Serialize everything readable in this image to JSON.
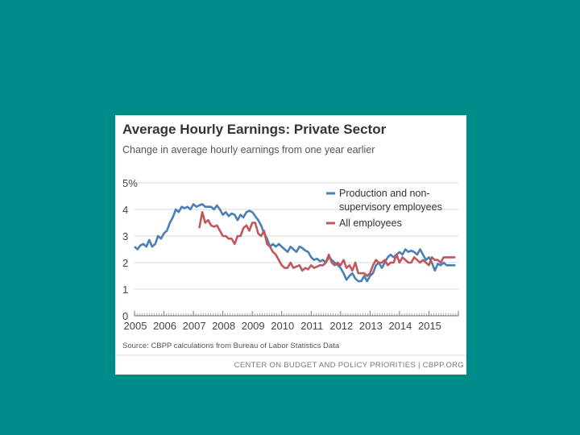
{
  "background_color": "#008b8b",
  "chart_data": {
    "type": "line",
    "title": "Average Hourly Earnings: Private Sector",
    "subtitle": "Change in average hourly earnings from one year earlier",
    "ylim": [
      0,
      5
    ],
    "y_ticks": [
      {
        "value": 0,
        "label": "0"
      },
      {
        "value": 1,
        "label": "1"
      },
      {
        "value": 2,
        "label": "2"
      },
      {
        "value": 3,
        "label": "3"
      },
      {
        "value": 4,
        "label": "4"
      },
      {
        "value": 5,
        "label": "5%"
      }
    ],
    "xlim": [
      2005,
      2016
    ],
    "x_ticks": [
      {
        "value": 2005,
        "label": "2005"
      },
      {
        "value": 2006,
        "label": "2006"
      },
      {
        "value": 2007,
        "label": "2007"
      },
      {
        "value": 2008,
        "label": "2008"
      },
      {
        "value": 2009,
        "label": "2009"
      },
      {
        "value": 2010,
        "label": "2010"
      },
      {
        "value": 2011,
        "label": "2011"
      },
      {
        "value": 2012,
        "label": "2012"
      },
      {
        "value": 2013,
        "label": "2013"
      },
      {
        "value": 2014,
        "label": "2014"
      },
      {
        "value": 2015,
        "label": "2015"
      }
    ],
    "legend_position": "top-right",
    "series": [
      {
        "name": "Production and non-supervisory employees",
        "legend_lines": [
          "Production and non-",
          "supervisory employees"
        ],
        "color": "#4a7fb5",
        "points": [
          [
            2005.0,
            2.6
          ],
          [
            2005.1,
            2.5
          ],
          [
            2005.2,
            2.65
          ],
          [
            2005.3,
            2.7
          ],
          [
            2005.4,
            2.6
          ],
          [
            2005.5,
            2.85
          ],
          [
            2005.6,
            2.6
          ],
          [
            2005.7,
            2.7
          ],
          [
            2005.8,
            3.0
          ],
          [
            2005.9,
            2.9
          ],
          [
            2006.0,
            3.1
          ],
          [
            2006.1,
            3.2
          ],
          [
            2006.2,
            3.5
          ],
          [
            2006.3,
            3.7
          ],
          [
            2006.4,
            4.0
          ],
          [
            2006.5,
            3.9
          ],
          [
            2006.6,
            4.1
          ],
          [
            2006.7,
            4.05
          ],
          [
            2006.8,
            4.1
          ],
          [
            2006.9,
            4.0
          ],
          [
            2007.0,
            4.2
          ],
          [
            2007.1,
            4.1
          ],
          [
            2007.2,
            4.15
          ],
          [
            2007.3,
            4.2
          ],
          [
            2007.4,
            4.1
          ],
          [
            2007.5,
            4.1
          ],
          [
            2007.6,
            4.1
          ],
          [
            2007.7,
            4.0
          ],
          [
            2007.8,
            4.15
          ],
          [
            2007.9,
            4.0
          ],
          [
            2008.0,
            3.8
          ],
          [
            2008.1,
            3.9
          ],
          [
            2008.2,
            3.75
          ],
          [
            2008.3,
            3.85
          ],
          [
            2008.4,
            3.8
          ],
          [
            2008.5,
            3.6
          ],
          [
            2008.6,
            3.8
          ],
          [
            2008.7,
            3.7
          ],
          [
            2008.8,
            3.9
          ],
          [
            2008.9,
            3.95
          ],
          [
            2009.0,
            3.9
          ],
          [
            2009.1,
            3.75
          ],
          [
            2009.2,
            3.6
          ],
          [
            2009.3,
            3.4
          ],
          [
            2009.4,
            3.1
          ],
          [
            2009.5,
            2.9
          ],
          [
            2009.6,
            2.6
          ],
          [
            2009.7,
            2.7
          ],
          [
            2009.8,
            2.6
          ],
          [
            2009.9,
            2.7
          ],
          [
            2010.0,
            2.6
          ],
          [
            2010.1,
            2.5
          ],
          [
            2010.2,
            2.4
          ],
          [
            2010.3,
            2.6
          ],
          [
            2010.4,
            2.5
          ],
          [
            2010.5,
            2.4
          ],
          [
            2010.6,
            2.6
          ],
          [
            2010.7,
            2.55
          ],
          [
            2010.8,
            2.45
          ],
          [
            2010.9,
            2.4
          ],
          [
            2011.0,
            2.2
          ],
          [
            2011.1,
            2.1
          ],
          [
            2011.2,
            2.15
          ],
          [
            2011.3,
            2.05
          ],
          [
            2011.4,
            2.1
          ],
          [
            2011.5,
            2.0
          ],
          [
            2011.6,
            2.2
          ],
          [
            2011.7,
            2.1
          ],
          [
            2011.8,
            2.0
          ],
          [
            2011.9,
            1.9
          ],
          [
            2012.0,
            1.8
          ],
          [
            2012.1,
            1.6
          ],
          [
            2012.2,
            1.35
          ],
          [
            2012.3,
            1.5
          ],
          [
            2012.4,
            1.6
          ],
          [
            2012.5,
            1.4
          ],
          [
            2012.6,
            1.3
          ],
          [
            2012.7,
            1.3
          ],
          [
            2012.8,
            1.5
          ],
          [
            2012.9,
            1.3
          ],
          [
            2013.0,
            1.5
          ],
          [
            2013.1,
            1.6
          ],
          [
            2013.2,
            1.9
          ],
          [
            2013.3,
            2.0
          ],
          [
            2013.4,
            1.8
          ],
          [
            2013.5,
            2.0
          ],
          [
            2013.6,
            2.2
          ],
          [
            2013.7,
            2.3
          ],
          [
            2013.8,
            2.2
          ],
          [
            2013.9,
            2.3
          ],
          [
            2014.0,
            2.4
          ],
          [
            2014.1,
            2.3
          ],
          [
            2014.2,
            2.5
          ],
          [
            2014.3,
            2.4
          ],
          [
            2014.4,
            2.45
          ],
          [
            2014.5,
            2.4
          ],
          [
            2014.6,
            2.3
          ],
          [
            2014.7,
            2.5
          ],
          [
            2014.8,
            2.3
          ],
          [
            2014.9,
            2.1
          ],
          [
            2015.0,
            2.2
          ],
          [
            2015.1,
            2.0
          ],
          [
            2015.2,
            1.7
          ],
          [
            2015.3,
            1.95
          ],
          [
            2015.4,
            1.9
          ],
          [
            2015.5,
            2.0
          ],
          [
            2015.6,
            1.9
          ],
          [
            2015.7,
            1.9
          ],
          [
            2015.8,
            1.9
          ],
          [
            2015.9,
            1.9
          ]
        ]
      },
      {
        "name": "All employees",
        "legend_lines": [
          "All employees"
        ],
        "color": "#c0575a",
        "points": [
          [
            2007.2,
            3.3
          ],
          [
            2007.3,
            3.9
          ],
          [
            2007.4,
            3.5
          ],
          [
            2007.5,
            3.6
          ],
          [
            2007.6,
            3.4
          ],
          [
            2007.7,
            3.35
          ],
          [
            2007.8,
            3.4
          ],
          [
            2007.9,
            3.2
          ],
          [
            2008.0,
            3.0
          ],
          [
            2008.1,
            3.0
          ],
          [
            2008.2,
            2.9
          ],
          [
            2008.3,
            2.9
          ],
          [
            2008.4,
            2.7
          ],
          [
            2008.5,
            3.0
          ],
          [
            2008.6,
            3.0
          ],
          [
            2008.7,
            3.3
          ],
          [
            2008.8,
            3.4
          ],
          [
            2008.9,
            3.2
          ],
          [
            2009.0,
            3.5
          ],
          [
            2009.1,
            3.5
          ],
          [
            2009.2,
            3.1
          ],
          [
            2009.3,
            3.0
          ],
          [
            2009.4,
            3.2
          ],
          [
            2009.5,
            2.7
          ],
          [
            2009.6,
            2.6
          ],
          [
            2009.7,
            2.4
          ],
          [
            2009.8,
            2.3
          ],
          [
            2009.9,
            2.1
          ],
          [
            2010.0,
            1.9
          ],
          [
            2010.1,
            1.8
          ],
          [
            2010.2,
            1.8
          ],
          [
            2010.3,
            2.0
          ],
          [
            2010.4,
            1.8
          ],
          [
            2010.5,
            1.85
          ],
          [
            2010.6,
            1.9
          ],
          [
            2010.7,
            1.7
          ],
          [
            2010.8,
            1.8
          ],
          [
            2010.9,
            1.75
          ],
          [
            2011.0,
            1.9
          ],
          [
            2011.1,
            1.8
          ],
          [
            2011.2,
            1.85
          ],
          [
            2011.3,
            1.9
          ],
          [
            2011.4,
            1.9
          ],
          [
            2011.5,
            2.0
          ],
          [
            2011.6,
            2.3
          ],
          [
            2011.7,
            2.0
          ],
          [
            2011.8,
            1.9
          ],
          [
            2011.9,
            2.0
          ],
          [
            2012.0,
            1.9
          ],
          [
            2012.1,
            2.1
          ],
          [
            2012.2,
            1.8
          ],
          [
            2012.3,
            1.9
          ],
          [
            2012.4,
            1.7
          ],
          [
            2012.5,
            2.0
          ],
          [
            2012.6,
            1.6
          ],
          [
            2012.7,
            1.6
          ],
          [
            2012.8,
            1.6
          ],
          [
            2012.9,
            1.5
          ],
          [
            2013.0,
            1.6
          ],
          [
            2013.1,
            1.9
          ],
          [
            2013.2,
            2.1
          ],
          [
            2013.3,
            2.0
          ],
          [
            2013.4,
            2.0
          ],
          [
            2013.5,
            2.1
          ],
          [
            2013.6,
            1.9
          ],
          [
            2013.7,
            2.0
          ],
          [
            2013.8,
            2.0
          ],
          [
            2013.9,
            2.3
          ],
          [
            2014.0,
            2.0
          ],
          [
            2014.1,
            2.2
          ],
          [
            2014.2,
            2.1
          ],
          [
            2014.3,
            2.0
          ],
          [
            2014.4,
            2.0
          ],
          [
            2014.5,
            2.2
          ],
          [
            2014.6,
            2.1
          ],
          [
            2014.7,
            2.0
          ],
          [
            2014.8,
            2.1
          ],
          [
            2014.9,
            2.0
          ],
          [
            2015.0,
            1.9
          ],
          [
            2015.1,
            2.2
          ],
          [
            2015.2,
            2.1
          ],
          [
            2015.3,
            2.1
          ],
          [
            2015.4,
            2.0
          ],
          [
            2015.5,
            2.2
          ],
          [
            2015.6,
            2.2
          ],
          [
            2015.7,
            2.2
          ],
          [
            2015.8,
            2.2
          ],
          [
            2015.9,
            2.2
          ]
        ]
      }
    ],
    "source": "Source: CBPP calculations from Bureau of Labor Statistics Data",
    "footer": "CENTER ON BUDGET AND POLICY PRIORITIES | CBPP.ORG"
  }
}
